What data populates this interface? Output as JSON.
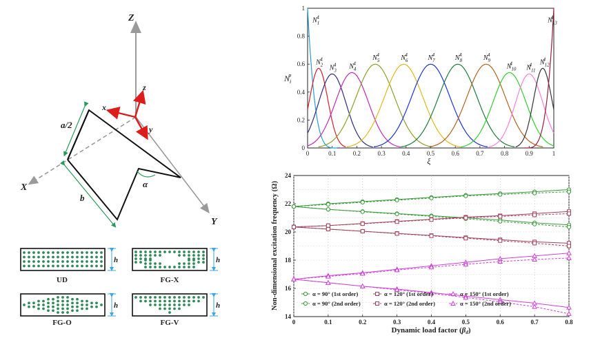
{
  "geometry": {
    "axis_Z": "Z",
    "axis_X": "X",
    "axis_Y": "Y",
    "local_x": "x",
    "local_y": "y",
    "local_z": "z",
    "half_width_label": "a/2",
    "length_label": "b",
    "angle_label": "α"
  },
  "distributions": {
    "thickness_label": "h",
    "items": [
      {
        "name": "UD"
      },
      {
        "name": "FG-X"
      },
      {
        "name": "FG-O"
      },
      {
        "name": "FG-V"
      }
    ]
  },
  "chart_data": [
    {
      "type": "line",
      "description": "Quartic B-spline basis functions",
      "xlabel": "ξ",
      "ylabel_main": "N",
      "ylabel_sub": "i",
      "ylabel_sup": "p",
      "xlim": [
        0,
        1
      ],
      "ylim": [
        0,
        1
      ],
      "x_ticks": [
        "0",
        "0.1",
        "0.2",
        "0.3",
        "0.4",
        "0.5",
        "0.6",
        "0.7",
        "0.8",
        "0.9",
        "1"
      ],
      "y_ticks": [
        "0",
        "0.2",
        "0.4",
        "0.6",
        "0.8",
        "1"
      ],
      "series": [
        {
          "name": "N_1^4",
          "sub": "1",
          "sup": "4",
          "color": "#1f9fd8",
          "peak_x": 0,
          "peak_y": 1.0
        },
        {
          "name": "N_2^4",
          "sub": "2",
          "sup": "4",
          "color": "#d81c2c",
          "peak_x": 0.045,
          "peak_y": 0.57
        },
        {
          "name": "N_3^4",
          "sub": "3",
          "sup": "4",
          "color": "#2a2a80",
          "peak_x": 0.1,
          "peak_y": 0.53
        },
        {
          "name": "N_4^4",
          "sub": "4",
          "sup": "4",
          "color": "#c02ab8",
          "peak_x": 0.18,
          "peak_y": 0.54
        },
        {
          "name": "N_5^4",
          "sub": "5",
          "sup": "4",
          "color": "#8aa028",
          "peak_x": 0.275,
          "peak_y": 0.6
        },
        {
          "name": "N_6^4",
          "sub": "6",
          "sup": "4",
          "color": "#e0b81a",
          "peak_x": 0.39,
          "peak_y": 0.6
        },
        {
          "name": "N_7^4",
          "sub": "7",
          "sup": "4",
          "color": "#1a2fe0",
          "peak_x": 0.5,
          "peak_y": 0.6
        },
        {
          "name": "N_8^4",
          "sub": "8",
          "sup": "4",
          "color": "#1d7a3a",
          "peak_x": 0.61,
          "peak_y": 0.6
        },
        {
          "name": "N_9^4",
          "sub": "9",
          "sup": "4",
          "color": "#b5601c",
          "peak_x": 0.725,
          "peak_y": 0.6
        },
        {
          "name": "N_10^4",
          "sub": "10",
          "sup": "4",
          "color": "#2fd02f",
          "peak_x": 0.82,
          "peak_y": 0.54
        },
        {
          "name": "N_11^4",
          "sub": "11",
          "sup": "4",
          "color": "#ff7fd8",
          "peak_x": 0.9,
          "peak_y": 0.53
        },
        {
          "name": "N_12^4",
          "sub": "12",
          "sup": "4",
          "color": "#333333",
          "peak_x": 0.955,
          "peak_y": 0.57
        },
        {
          "name": "N_13^4",
          "sub": "13",
          "sup": "4",
          "color": "#9b1c3c",
          "peak_x": 1,
          "peak_y": 1.0
        }
      ]
    },
    {
      "type": "line",
      "xlabel_main": "Dynamic load factor (",
      "xlabel_sym": "β",
      "xlabel_sub": "d",
      "xlabel_end": ")",
      "ylabel": "Non-dimensional excitation frequency (Ω)",
      "xlim": [
        0,
        0.8
      ],
      "ylim": [
        14,
        24
      ],
      "x": [
        0,
        0.1,
        0.2,
        0.3,
        0.4,
        0.5,
        0.6,
        0.7,
        0.8
      ],
      "x_ticks": [
        "0",
        "0.1",
        "0.2",
        "0.3",
        "0.4",
        "0.5",
        "0.6",
        "0.7",
        "0.8"
      ],
      "y_ticks": [
        "14",
        "16",
        "18",
        "20",
        "22",
        "24"
      ],
      "series": [
        {
          "name": "α = 90° (1st order)",
          "color": "#3a9a3a",
          "marker": "circle",
          "dash": false,
          "upper": [
            21.8,
            22.0,
            22.15,
            22.3,
            22.45,
            22.6,
            22.72,
            22.85,
            23.0
          ],
          "lower": [
            21.8,
            21.6,
            21.45,
            21.3,
            21.15,
            21.0,
            20.85,
            20.65,
            20.5
          ]
        },
        {
          "name": "α = 90° (2nd order)",
          "color": "#3a9a3a",
          "marker": "circle",
          "dash": true,
          "upper": [
            21.8,
            21.95,
            22.1,
            22.25,
            22.4,
            22.55,
            22.65,
            22.75,
            22.85
          ],
          "lower": [
            21.8,
            21.6,
            21.43,
            21.27,
            21.1,
            20.93,
            20.75,
            20.55,
            20.35
          ]
        },
        {
          "name": "α = 120° (1st order)",
          "color": "#a3405a",
          "marker": "square",
          "dash": false,
          "upper": [
            20.35,
            20.45,
            20.6,
            20.75,
            20.9,
            21.05,
            21.15,
            21.3,
            21.45
          ],
          "lower": [
            20.35,
            20.2,
            20.05,
            19.9,
            19.75,
            19.6,
            19.45,
            19.3,
            19.2
          ]
        },
        {
          "name": "α = 120° (2nd order)",
          "color": "#a3405a",
          "marker": "square",
          "dash": true,
          "upper": [
            20.35,
            20.45,
            20.58,
            20.72,
            20.87,
            21.0,
            21.1,
            21.2,
            21.3
          ],
          "lower": [
            20.35,
            20.2,
            20.05,
            19.88,
            19.72,
            19.55,
            19.38,
            19.2,
            19.0
          ]
        },
        {
          "name": "α = 150° (1st order)",
          "color": "#d040d8",
          "marker": "triangle",
          "dash": false,
          "upper": [
            16.65,
            16.9,
            17.1,
            17.35,
            17.6,
            17.85,
            18.1,
            18.3,
            18.5
          ],
          "lower": [
            16.65,
            16.4,
            16.15,
            15.95,
            15.7,
            15.45,
            15.2,
            14.95,
            14.65
          ]
        },
        {
          "name": "α = 150° (2nd order)",
          "color": "#d040d8",
          "marker": "triangle",
          "dash": true,
          "upper": [
            16.65,
            16.85,
            17.05,
            17.3,
            17.5,
            17.7,
            17.9,
            18.05,
            18.15
          ],
          "lower": [
            16.65,
            16.4,
            16.15,
            15.9,
            15.65,
            15.35,
            15.05,
            14.7,
            14.2
          ]
        }
      ],
      "legend_placement": "bottom-center"
    }
  ]
}
